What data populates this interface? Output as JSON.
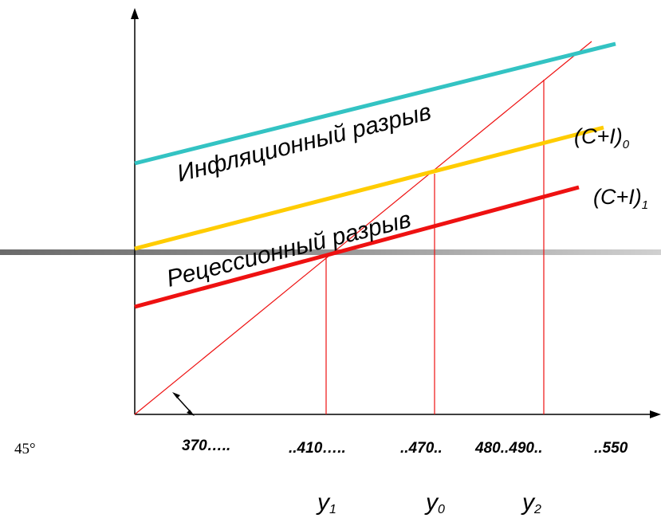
{
  "diagram": {
    "lines": {
      "inflation_label": "Инфляционный разрыв",
      "recession_label": "Рецессионный разрыв",
      "ci0_label": "(C+I)",
      "ci0_sub": "0",
      "ci1_label": "(C+I)",
      "ci1_sub": "1"
    },
    "angle_label": "45°",
    "x_ticks": [
      "370…..",
      "..410…..",
      "..470..",
      "480..490..",
      "..550"
    ],
    "y_markers": [
      {
        "base": "y",
        "sub": "1"
      },
      {
        "base": "y",
        "sub": "0"
      },
      {
        "base": "y",
        "sub": "2"
      }
    ],
    "colors": {
      "axis": "#000000",
      "inflation_line": "#33c3c3",
      "ci0_line": "#ffcc00",
      "ci1_line": "#ee1111",
      "guide_lines": "#ee1111",
      "separator_dark": "#606060",
      "separator_light": "#c8c8c8"
    }
  }
}
